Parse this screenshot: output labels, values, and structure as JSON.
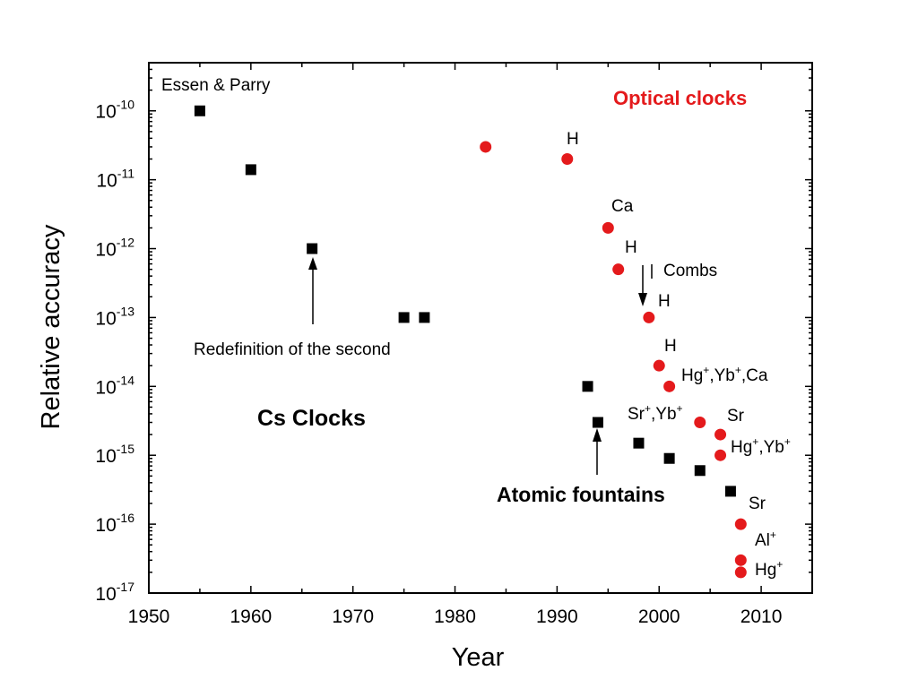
{
  "chart_data": {
    "type": "scatter",
    "xlabel": "Year",
    "ylabel": "Relative accuracy",
    "xlim": [
      1950,
      2015
    ],
    "ylim": [
      1e-17,
      5e-10
    ],
    "yscale": "log",
    "grid": false,
    "x_ticks": [
      "1950",
      "1960",
      "1970",
      "1980",
      "1990",
      "2000",
      "2010"
    ],
    "y_ticks": [
      {
        "mantissa": "10",
        "exp": "-10"
      },
      {
        "mantissa": "10",
        "exp": "-11"
      },
      {
        "mantissa": "10",
        "exp": "-12"
      },
      {
        "mantissa": "10",
        "exp": "-13"
      },
      {
        "mantissa": "10",
        "exp": "-14"
      },
      {
        "mantissa": "10",
        "exp": "-15"
      },
      {
        "mantissa": "10",
        "exp": "-16"
      },
      {
        "mantissa": "10",
        "exp": "-17"
      }
    ],
    "series": [
      {
        "name": "Cs Clocks",
        "color": "#000000",
        "marker": "square",
        "points": [
          [
            1955,
            1e-10
          ],
          [
            1960,
            1.4e-11
          ],
          [
            1966,
            1e-12
          ],
          [
            1975,
            1e-13
          ],
          [
            1977,
            1e-13
          ],
          [
            1993,
            1e-14
          ],
          [
            1994,
            3e-15
          ],
          [
            1998,
            1.5e-15
          ],
          [
            2001,
            9e-16
          ],
          [
            2004,
            6e-16
          ],
          [
            2007,
            3e-16
          ]
        ]
      },
      {
        "name": "Optical clocks",
        "color": "#e41a1c",
        "marker": "circle",
        "points": [
          [
            1983,
            3e-11
          ],
          [
            1991,
            2e-11
          ],
          [
            1995,
            2e-12
          ],
          [
            1996,
            5e-13
          ],
          [
            1999,
            1e-13
          ],
          [
            2000,
            2e-14
          ],
          [
            2001,
            1e-14
          ],
          [
            2004,
            3e-15
          ],
          [
            2006,
            2e-15
          ],
          [
            2006,
            1e-15
          ],
          [
            2008,
            1e-16
          ],
          [
            2008,
            3e-17
          ],
          [
            2008,
            2e-17
          ]
        ]
      }
    ],
    "annotations": {
      "essen_parry": "Essen & Parry",
      "optical_clocks": "Optical clocks",
      "cs_clocks": "Cs Clocks",
      "redefinition": "Redefinition of the second",
      "atomic_fountains": "Atomic fountains",
      "combs": "Combs",
      "h1": "H",
      "ca": "Ca",
      "h2": "H",
      "h3": "H",
      "h4": "H",
      "hg_yb_ca": {
        "a": "Hg",
        "sa": "+",
        "b": ",Yb",
        "sb": "+",
        "c": ",Ca"
      },
      "sr_yb": {
        "a": "Sr",
        "sa": "+",
        "b": ",Yb",
        "sb": "+"
      },
      "sr1": "Sr",
      "hg_yb": {
        "a": "Hg",
        "sa": "+",
        "b": ",Yb",
        "sb": "+"
      },
      "sr2": "Sr",
      "al": {
        "a": "Al",
        "sa": "+"
      },
      "hg": {
        "a": "Hg",
        "sa": "+"
      }
    }
  }
}
